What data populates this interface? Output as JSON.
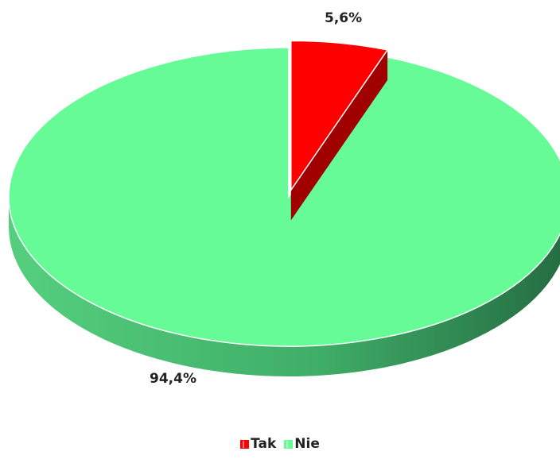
{
  "chart_data": {
    "type": "pie",
    "title": "",
    "slices": [
      {
        "name": "Tak",
        "value": 5.6,
        "label": "5,6%",
        "color": "#ff0000",
        "exploded": true
      },
      {
        "name": "Nie",
        "value": 94.4,
        "label": "94,4%",
        "color": "#66fb96",
        "exploded": false
      }
    ],
    "style": "3d",
    "legend_position": "bottom"
  },
  "legend": {
    "items": [
      {
        "label": "Tak",
        "color": "#ff0000"
      },
      {
        "label": "Nie",
        "color": "#66fb96"
      }
    ]
  }
}
